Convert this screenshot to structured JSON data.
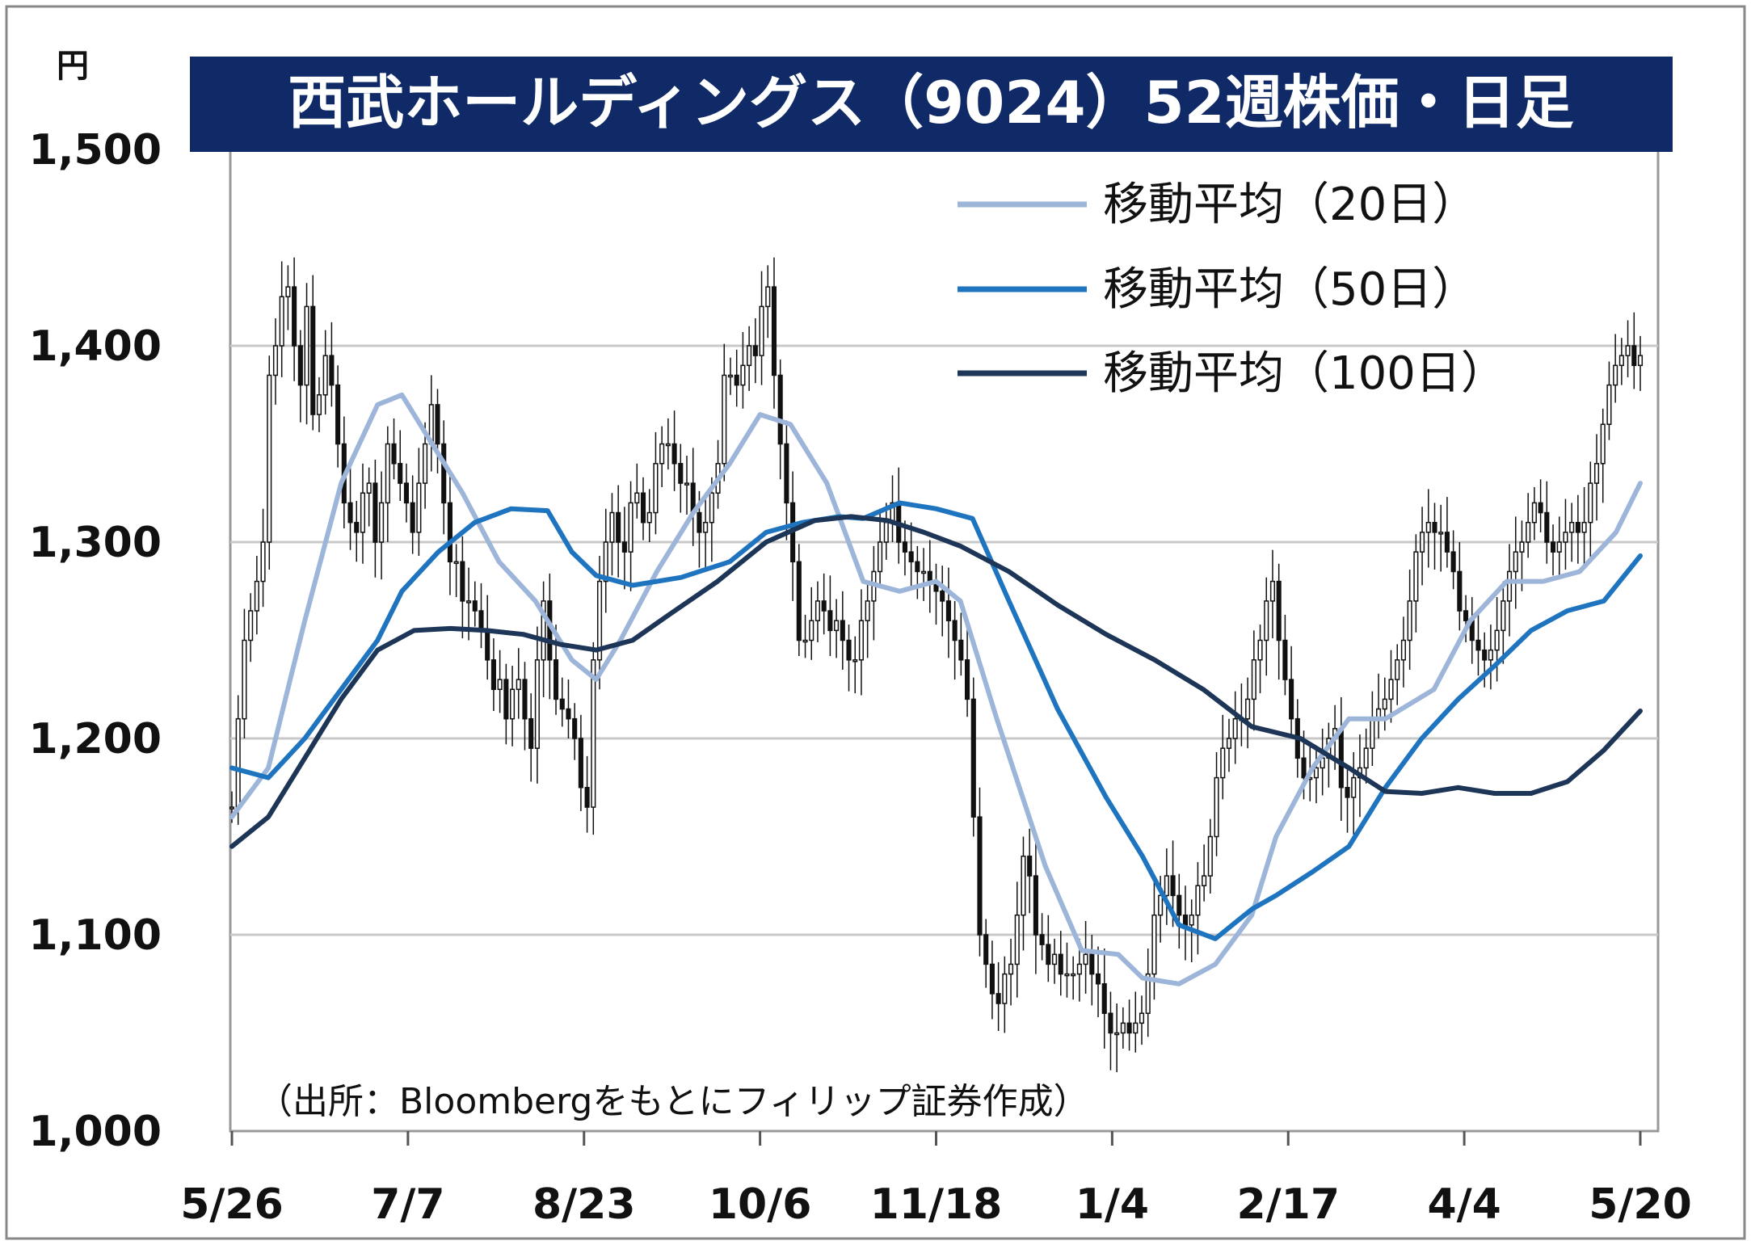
{
  "chart_data": {
    "type": "line",
    "title": "西武ホールディングス（9024）52週株価・日足",
    "unit": "円",
    "source": "（出所：Bloombergをもとにフィリップ証券作成）",
    "ylim": [
      1000,
      1500
    ],
    "y_ticks": [
      1000,
      1100,
      1200,
      1300,
      1400,
      1500
    ],
    "y_tick_labels": [
      "1,000",
      "1,100",
      "1,200",
      "1,300",
      "1,400",
      "1,500"
    ],
    "x_tick_labels": [
      "5/26",
      "7/7",
      "8/23",
      "10/6",
      "11/18",
      "1/4",
      "2/17",
      "4/4",
      "5/20"
    ],
    "x_ticks": [
      0,
      29,
      58,
      87,
      116,
      145,
      174,
      203,
      232
    ],
    "x_range": [
      0,
      232
    ],
    "grid": true,
    "legend_position": "top-right",
    "series": [
      {
        "name": "移動平均（20日）",
        "color": "#9db5d8",
        "x": [
          0,
          6,
          12,
          18,
          24,
          28,
          32,
          38,
          44,
          50,
          56,
          60,
          64,
          70,
          76,
          82,
          87,
          92,
          98,
          104,
          110,
          116,
          120,
          126,
          134,
          140,
          146,
          150,
          156,
          162,
          168,
          172,
          178,
          184,
          190,
          198,
          204,
          210,
          216,
          222,
          228,
          232
        ],
        "values": [
          1160,
          1185,
          1260,
          1330,
          1370,
          1375,
          1355,
          1325,
          1290,
          1270,
          1240,
          1230,
          1250,
          1285,
          1315,
          1340,
          1365,
          1360,
          1330,
          1280,
          1275,
          1280,
          1270,
          1210,
          1135,
          1092,
          1090,
          1078,
          1075,
          1085,
          1110,
          1150,
          1185,
          1210,
          1210,
          1225,
          1260,
          1280,
          1280,
          1285,
          1305,
          1330
        ]
      },
      {
        "name": "移動平均（50日）",
        "color": "#1f74bf",
        "x": [
          0,
          6,
          12,
          18,
          24,
          28,
          34,
          40,
          46,
          52,
          56,
          60,
          66,
          74,
          82,
          88,
          94,
          100,
          104,
          110,
          116,
          122,
          128,
          136,
          144,
          150,
          156,
          162,
          168,
          172,
          178,
          184,
          190,
          196,
          202,
          208,
          214,
          220,
          226,
          232
        ],
        "values": [
          1185,
          1180,
          1200,
          1225,
          1250,
          1275,
          1295,
          1310,
          1317,
          1316,
          1295,
          1283,
          1278,
          1282,
          1290,
          1305,
          1310,
          1313,
          1312,
          1320,
          1317,
          1312,
          1270,
          1215,
          1170,
          1140,
          1105,
          1098,
          1113,
          1120,
          1132,
          1145,
          1175,
          1200,
          1220,
          1237,
          1255,
          1265,
          1270,
          1293
        ]
      },
      {
        "name": "移動平均（100日）",
        "color": "#1d3557",
        "x": [
          0,
          6,
          12,
          18,
          24,
          30,
          36,
          42,
          48,
          54,
          60,
          66,
          72,
          80,
          88,
          96,
          102,
          108,
          114,
          120,
          128,
          136,
          144,
          152,
          160,
          168,
          176,
          184,
          190,
          196,
          202,
          208,
          214,
          220,
          226,
          232
        ],
        "values": [
          1145,
          1160,
          1190,
          1220,
          1245,
          1255,
          1256,
          1255,
          1253,
          1248,
          1245,
          1250,
          1263,
          1280,
          1300,
          1311,
          1313,
          1311,
          1305,
          1298,
          1285,
          1268,
          1253,
          1240,
          1225,
          1206,
          1200,
          1185,
          1173,
          1172,
          1175,
          1172,
          1172,
          1178,
          1194,
          1214
        ]
      }
    ],
    "candles": {
      "x_step": 1,
      "close": [
        1165,
        1210,
        1250,
        1265,
        1280,
        1300,
        1385,
        1400,
        1425,
        1430,
        1400,
        1380,
        1420,
        1365,
        1375,
        1395,
        1380,
        1350,
        1320,
        1310,
        1305,
        1325,
        1330,
        1300,
        1320,
        1350,
        1340,
        1330,
        1320,
        1305,
        1330,
        1350,
        1370,
        1350,
        1320,
        1290,
        1290,
        1270,
        1270,
        1265,
        1255,
        1240,
        1225,
        1230,
        1210,
        1225,
        1230,
        1210,
        1195,
        1240,
        1270,
        1240,
        1220,
        1215,
        1210,
        1200,
        1175,
        1165,
        1240,
        1280,
        1300,
        1315,
        1300,
        1295,
        1320,
        1325,
        1310,
        1315,
        1340,
        1350,
        1350,
        1340,
        1330,
        1330,
        1315,
        1305,
        1310,
        1325,
        1340,
        1385,
        1385,
        1380,
        1390,
        1400,
        1395,
        1420,
        1430,
        1385,
        1350,
        1320,
        1290,
        1250,
        1250,
        1260,
        1270,
        1265,
        1255,
        1260,
        1250,
        1240,
        1240,
        1260,
        1270,
        1285,
        1300,
        1310,
        1320,
        1300,
        1295,
        1290,
        1285,
        1285,
        1280,
        1275,
        1270,
        1260,
        1250,
        1240,
        1220,
        1160,
        1100,
        1085,
        1070,
        1065,
        1080,
        1085,
        1110,
        1140,
        1130,
        1100,
        1095,
        1085,
        1090,
        1080,
        1080,
        1080,
        1085,
        1090,
        1080,
        1075,
        1060,
        1050,
        1050,
        1055,
        1050,
        1055,
        1060,
        1080,
        1110,
        1120,
        1130,
        1120,
        1110,
        1105,
        1110,
        1125,
        1130,
        1150,
        1180,
        1195,
        1200,
        1210,
        1210,
        1220,
        1240,
        1250,
        1270,
        1280,
        1250,
        1230,
        1210,
        1190,
        1180,
        1180,
        1185,
        1190,
        1200,
        1205,
        1175,
        1170,
        1180,
        1185,
        1195,
        1210,
        1215,
        1220,
        1230,
        1240,
        1250,
        1270,
        1295,
        1305,
        1310,
        1305,
        1305,
        1295,
        1285,
        1265,
        1260,
        1250,
        1245,
        1240,
        1245,
        1255,
        1270,
        1285,
        1295,
        1300,
        1310,
        1320,
        1315,
        1300,
        1295,
        1300,
        1305,
        1310,
        1305,
        1310,
        1330,
        1340,
        1360,
        1380,
        1390,
        1395,
        1400,
        1390,
        1395
      ]
    }
  }
}
